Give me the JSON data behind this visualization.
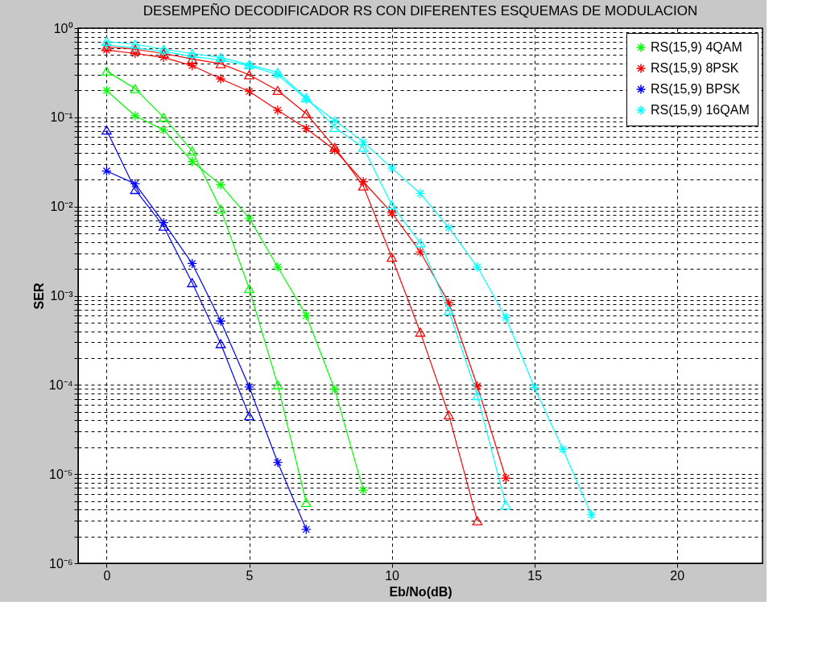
{
  "chart_data": {
    "type": "line",
    "title": "DESEMPEÑO DECODIFICADOR RS CON DIFERENTES ESQUEMAS DE MODULACION",
    "xlabel": "Eb/No(dB)",
    "ylabel": "SER",
    "log": "y",
    "grid": true,
    "legend": "top right",
    "line_style": "solid",
    "xlim": [
      -1,
      23
    ],
    "xticks": [
      0,
      5,
      10,
      15,
      20
    ],
    "ylim": [
      1e-06,
      1
    ],
    "yticks": [
      {
        "value": 1e-06,
        "label": "10⁻⁶"
      },
      {
        "value": 2e-06,
        "label": null
      },
      {
        "value": 3e-06,
        "label": null
      },
      {
        "value": 4e-06,
        "label": null
      },
      {
        "value": 5e-06,
        "label": null
      },
      {
        "value": 6e-06,
        "label": null
      },
      {
        "value": 7e-06,
        "label": null
      },
      {
        "value": 8e-06,
        "label": null
      },
      {
        "value": 9e-06,
        "label": null
      },
      {
        "value": 1e-05,
        "label": "10⁻⁵"
      },
      {
        "value": 2e-05,
        "label": null
      },
      {
        "value": 3e-05,
        "label": null
      },
      {
        "value": 4e-05,
        "label": null
      },
      {
        "value": 5e-05,
        "label": null
      },
      {
        "value": 6e-05,
        "label": null
      },
      {
        "value": 7e-05,
        "label": null
      },
      {
        "value": 8e-05,
        "label": null
      },
      {
        "value": 9e-05,
        "label": null
      },
      {
        "value": 0.0001,
        "label": "10⁻⁴"
      },
      {
        "value": 0.0002,
        "label": null
      },
      {
        "value": 0.0003,
        "label": null
      },
      {
        "value": 0.0004,
        "label": null
      },
      {
        "value": 0.0005,
        "label": null
      },
      {
        "value": 0.0006,
        "label": null
      },
      {
        "value": 0.0007,
        "label": null
      },
      {
        "value": 0.0008,
        "label": null
      },
      {
        "value": 0.0009,
        "label": null
      },
      {
        "value": 0.001,
        "label": "10⁻³"
      },
      {
        "value": 0.002,
        "label": null
      },
      {
        "value": 0.003,
        "label": null
      },
      {
        "value": 0.004,
        "label": null
      },
      {
        "value": 0.005,
        "label": null
      },
      {
        "value": 0.006,
        "label": null
      },
      {
        "value": 0.007,
        "label": null
      },
      {
        "value": 0.008,
        "label": null
      },
      {
        "value": 0.009,
        "label": null
      },
      {
        "value": 0.01,
        "label": "10⁻²"
      },
      {
        "value": 0.02,
        "label": null
      },
      {
        "value": 0.03,
        "label": null
      },
      {
        "value": 0.04,
        "label": null
      },
      {
        "value": 0.05,
        "label": null
      },
      {
        "value": 0.06,
        "label": null
      },
      {
        "value": 0.07,
        "label": null
      },
      {
        "value": 0.08,
        "label": null
      },
      {
        "value": 0.09,
        "label": null
      },
      {
        "value": 0.1,
        "label": "10⁻¹"
      },
      {
        "value": 0.2,
        "label": null
      },
      {
        "value": 0.3,
        "label": null
      },
      {
        "value": 0.4,
        "label": null
      },
      {
        "value": 0.5,
        "label": null
      },
      {
        "value": 0.6,
        "label": null
      },
      {
        "value": 0.7,
        "label": null
      },
      {
        "value": 0.8,
        "label": null
      },
      {
        "value": 0.9,
        "label": null
      },
      {
        "value": 1,
        "label": "10⁰"
      }
    ],
    "series": [
      {
        "name": "RS(15,9) 4QAM",
        "color": "#00ff00",
        "marker": "cross",
        "x": [
          0,
          1,
          2,
          3,
          4,
          5,
          6,
          7,
          8,
          9
        ],
        "values": [
          0.2,
          0.104,
          0.072,
          0.032,
          0.0175,
          0.0074,
          0.0021,
          0.0006,
          8.9e-05,
          6.6e-06
        ]
      },
      {
        "name": "RS(15,9) 8PSK",
        "color": "#ff0000",
        "marker": "cross",
        "x": [
          0,
          1,
          2,
          3,
          4,
          5,
          6,
          7,
          8,
          9,
          10,
          11,
          12,
          13,
          14
        ],
        "values": [
          0.57,
          0.52,
          0.47,
          0.38,
          0.27,
          0.196,
          0.12,
          0.075,
          0.043,
          0.019,
          0.0085,
          0.0031,
          0.00083,
          9.7e-05,
          9e-06
        ]
      },
      {
        "name": "RS(15,9) BPSK",
        "color": "#0000ff",
        "marker": "cross",
        "x": [
          0,
          1,
          2,
          3,
          4,
          5,
          6,
          7
        ],
        "values": [
          0.025,
          0.018,
          0.0066,
          0.0023,
          0.00052,
          9.5e-05,
          1.35e-05,
          2.4e-06
        ]
      },
      {
        "name": "RS(15,9) 16QAM",
        "color": "#00ffff",
        "marker": "cross",
        "x": [
          0,
          1,
          2,
          3,
          4,
          5,
          6,
          7,
          8,
          9,
          10,
          11,
          12,
          13,
          14,
          15,
          16,
          17
        ],
        "values": [
          0.65,
          0.6,
          0.55,
          0.48,
          0.44,
          0.38,
          0.3,
          0.16,
          0.092,
          0.053,
          0.027,
          0.014,
          0.0058,
          0.0021,
          0.00057,
          9.4e-05,
          1.9e-05,
          3.5e-06
        ]
      },
      {
        "color": "#00ff00",
        "marker": "triangle",
        "x": [
          0,
          1,
          2,
          3,
          4,
          5,
          6,
          7
        ],
        "values": [
          0.33,
          0.21,
          0.1,
          0.042,
          0.0094,
          0.0012,
          0.0001,
          4.8e-06
        ]
      },
      {
        "color": "#ff0000",
        "marker": "triangle",
        "x": [
          0,
          1,
          2,
          3,
          4,
          5,
          6,
          7,
          8,
          9,
          10,
          11,
          12,
          13
        ],
        "values": [
          0.62,
          0.58,
          0.52,
          0.45,
          0.4,
          0.3,
          0.2,
          0.11,
          0.046,
          0.017,
          0.0027,
          0.00039,
          4.6e-05,
          3e-06
        ]
      },
      {
        "color": "#0000ff",
        "marker": "triangle",
        "x": [
          0,
          1,
          2,
          3,
          4,
          5
        ],
        "values": [
          0.072,
          0.0155,
          0.006,
          0.0014,
          0.00029,
          4.5e-05
        ]
      },
      {
        "color": "#00ffff",
        "marker": "triangle",
        "x": [
          0,
          1,
          2,
          3,
          4,
          5,
          6,
          7,
          8,
          9,
          10,
          11,
          12,
          13,
          14
        ],
        "values": [
          0.71,
          0.66,
          0.58,
          0.52,
          0.47,
          0.39,
          0.32,
          0.166,
          0.077,
          0.046,
          0.0104,
          0.0039,
          0.00068,
          7.6e-05,
          4.5e-06
        ]
      }
    ]
  }
}
